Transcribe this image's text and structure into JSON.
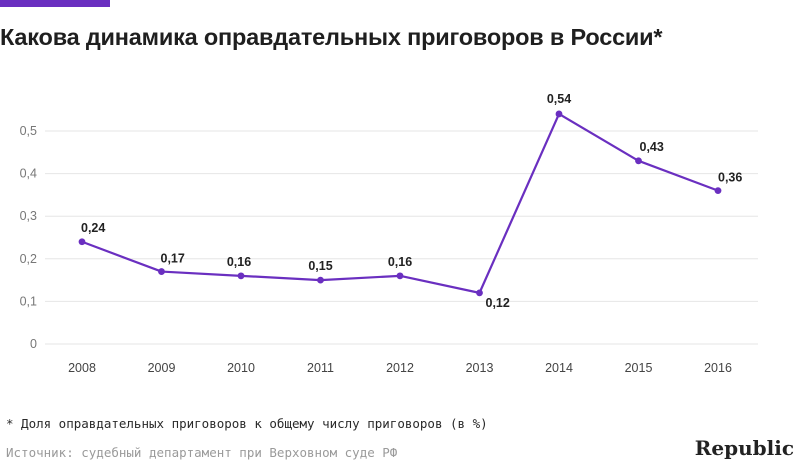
{
  "title": "Какова динамика оправдательных приговоров в России*",
  "footnote": "* Доля оправдательных приговоров к общему числу приговоров (в %)",
  "source": "Источник: судебный департамент при Верховном суде РФ",
  "brand": "Republic",
  "colors": {
    "accent": "#6a2fc0",
    "line": "#6a2fc0",
    "grid": "#e6e6e6",
    "tick": "#777777",
    "label": "#222222"
  },
  "chart_data": {
    "type": "line",
    "title": "Какова динамика оправдательных приговоров в России*",
    "xlabel": "",
    "ylabel": "",
    "x": [
      "2008",
      "2009",
      "2010",
      "2011",
      "2012",
      "2013",
      "2014",
      "2015",
      "2016"
    ],
    "series": [
      {
        "values": [
          0.24,
          0.17,
          0.16,
          0.15,
          0.16,
          0.12,
          0.54,
          0.43,
          0.36
        ],
        "labels": [
          "0,24",
          "0,17",
          "0,16",
          "0,15",
          "0,16",
          "0,12",
          "0,54",
          "0,43",
          "0,36"
        ]
      }
    ],
    "ylim": [
      0,
      0.5
    ],
    "yticks": [
      0,
      0.1,
      0.2,
      0.3,
      0.4,
      0.5
    ],
    "ytick_labels": [
      "0",
      "0,1",
      "0,2",
      "0,3",
      "0,4",
      "0,5"
    ],
    "grid": true,
    "legend": "none"
  }
}
